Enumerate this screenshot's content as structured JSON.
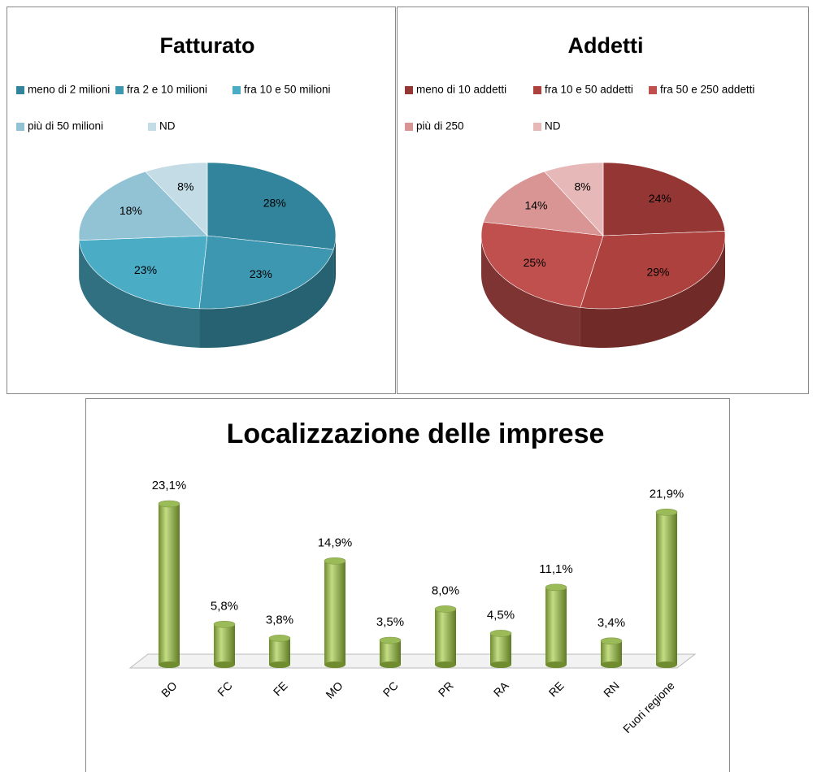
{
  "chart_data": [
    {
      "type": "pie3d",
      "title": "Fatturato",
      "categories": [
        "meno di 2 milioni",
        "fra 2 e 10 milioni",
        "fra 10 e 50 milioni",
        "più di 50 milioni",
        "ND"
      ],
      "values": [
        28,
        23,
        23,
        18,
        8
      ],
      "value_labels": [
        "28%",
        "23%",
        "23%",
        "18%",
        "8%"
      ],
      "colors": [
        "#31849b",
        "#3d97b0",
        "#4bacc6",
        "#92c3d4",
        "#c4dce5"
      ]
    },
    {
      "type": "pie3d",
      "title": "Addetti",
      "categories": [
        "meno di 10 addetti",
        "fra 10 e  50 addetti",
        "fra 50 e 250 addetti",
        "più di 250",
        "ND"
      ],
      "values": [
        24,
        29,
        25,
        14,
        8
      ],
      "value_labels": [
        "24%",
        "29%",
        "25%",
        "14%",
        "8%"
      ],
      "colors": [
        "#943634",
        "#ad413e",
        "#c0504d",
        "#d99594",
        "#e6b9b8"
      ]
    },
    {
      "type": "bar3d",
      "title": "Localizzazione delle imprese",
      "categories": [
        "BO",
        "FC",
        "FE",
        "MO",
        "PC",
        "PR",
        "RA",
        "RE",
        "RN",
        "Fuori regione"
      ],
      "values": [
        23.1,
        5.8,
        3.8,
        14.9,
        3.5,
        8.0,
        4.5,
        11.1,
        3.4,
        21.9
      ],
      "value_labels": [
        "23,1%",
        "5,8%",
        "3,8%",
        "14,9%",
        "3,5%",
        "8,0%",
        "4,5%",
        "11,1%",
        "3,4%",
        "21,9%"
      ],
      "color": "#9bbb59"
    }
  ]
}
